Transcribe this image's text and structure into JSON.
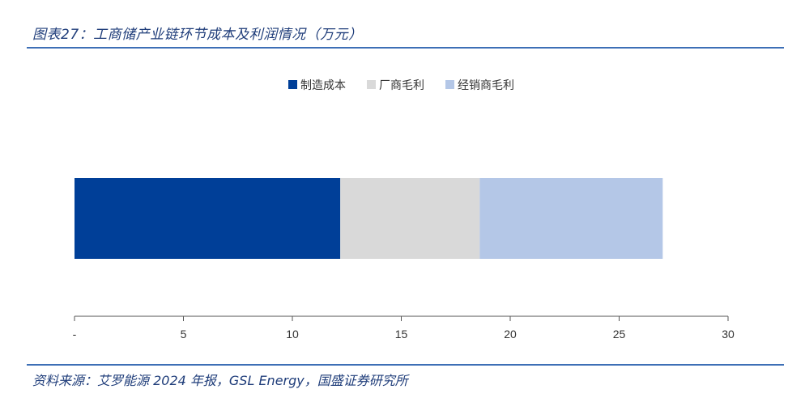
{
  "header": {
    "title": "图表27：工商储产业链环节成本及利润情况（万元）"
  },
  "footer": {
    "source": "资料来源：艾罗能源 2024 年报，GSL Energy，国盛证券研究所"
  },
  "chart_data": {
    "type": "bar",
    "orientation": "horizontal",
    "stacked": true,
    "title": "工商储产业链环节成本及利润情况（万元）",
    "categories": [
      ""
    ],
    "series": [
      {
        "name": "制造成本",
        "values": [
          12.2
        ],
        "color": "#003f98"
      },
      {
        "name": "厂商毛利",
        "values": [
          6.4
        ],
        "color": "#d9d9d9"
      },
      {
        "name": "经销商毛利",
        "values": [
          8.4
        ],
        "color": "#b4c7e7"
      }
    ],
    "xlim": [
      0,
      30
    ],
    "xticks": [
      0,
      5,
      10,
      15,
      20,
      25,
      30
    ],
    "xtick_labels": [
      "-",
      "5",
      "10",
      "15",
      "20",
      "25",
      "30"
    ],
    "legend": "top-center",
    "grid": false
  }
}
